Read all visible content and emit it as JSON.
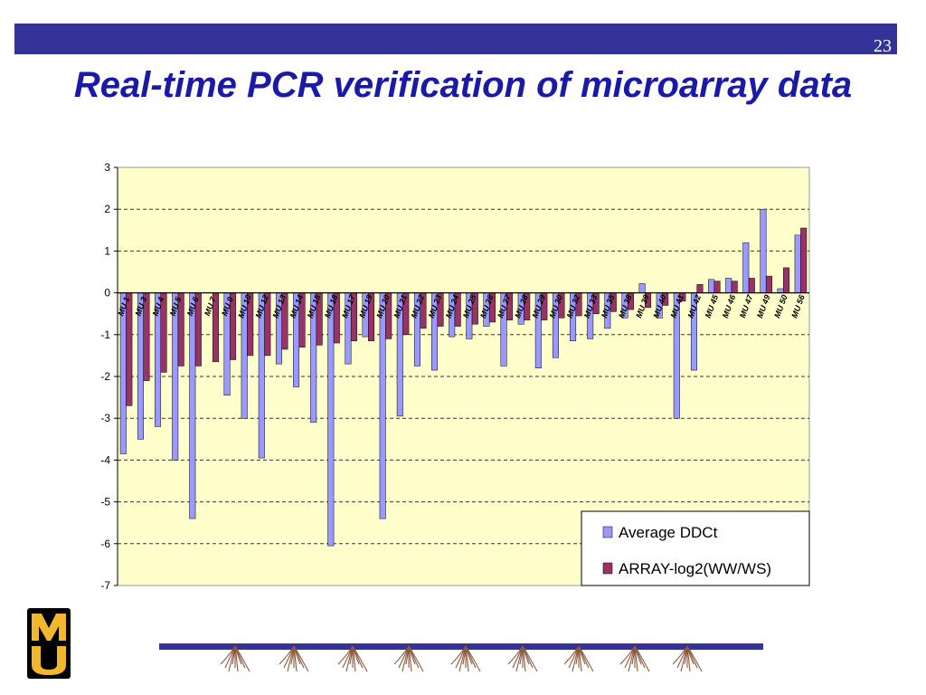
{
  "slide": {
    "page_number": "23",
    "title": "Real-time PCR verification of microarray data"
  },
  "colors": {
    "header_bar": "#333399",
    "title": "#1a1aa6",
    "plot_background": "#ffffcc",
    "series_1": "#9999ff",
    "series_2": "#993366"
  },
  "logo": {
    "letters": "MU",
    "name": "University of Missouri logo"
  },
  "chart_data": {
    "type": "bar",
    "title": "",
    "xlabel": "",
    "ylabel": "",
    "ylim": [
      -7,
      3
    ],
    "yticks": [
      3,
      2,
      1,
      0,
      -1,
      -2,
      -3,
      -4,
      -5,
      -6,
      -7
    ],
    "grid": "horizontal dashed",
    "legend_position": "bottom-right",
    "categories": [
      "MU 1",
      "MU 3",
      "MU 4",
      "MU 5",
      "MU 6",
      "MU 7",
      "MU 9",
      "MU 10",
      "MU 12",
      "MU 13",
      "MU 14",
      "MU 15",
      "MU 16",
      "MU 17",
      "MU 19",
      "MU 20",
      "MU 21",
      "MU 22",
      "MU 23",
      "MU 24",
      "MU 25",
      "MU 26",
      "MU 27",
      "MU 28",
      "MU 29",
      "MU 30",
      "MU 32",
      "MU 33",
      "MU 35",
      "MU 38",
      "MU 39",
      "MU 40",
      "MU 41",
      "MU 42",
      "MU 45",
      "MU 46",
      "MU 47",
      "MU 49",
      "MU 50",
      "MU 56"
    ],
    "series": [
      {
        "name": "Average DDCt",
        "color": "#9999ff",
        "values": [
          -3.85,
          -3.5,
          -3.2,
          -4.0,
          -5.4,
          0,
          -2.45,
          -3.0,
          -3.95,
          -1.7,
          -2.25,
          -3.1,
          -6.05,
          -1.7,
          -1.05,
          -5.4,
          -2.95,
          -1.75,
          -1.85,
          -1.05,
          -1.1,
          -0.8,
          -1.75,
          -0.75,
          -1.8,
          -1.55,
          -1.15,
          -1.1,
          -0.85,
          -0.6,
          0.22,
          -0.6,
          -3.0,
          -1.85,
          0.32,
          0.35,
          1.2,
          2.0,
          0.1,
          1.38
        ]
      },
      {
        "name": "ARRAY-log2(WW/WS)",
        "color": "#993366",
        "values": [
          -2.7,
          -2.1,
          -1.9,
          -1.75,
          -1.75,
          -1.65,
          -1.6,
          -1.5,
          -1.5,
          -1.35,
          -1.3,
          -1.25,
          -1.2,
          -1.15,
          -1.15,
          -1.1,
          -1.0,
          -0.85,
          -0.8,
          -0.8,
          -0.75,
          -0.7,
          -0.65,
          -0.65,
          -0.65,
          -0.6,
          -0.55,
          -0.5,
          -0.45,
          -0.4,
          -0.35,
          -0.3,
          -0.2,
          0.2,
          0.28,
          0.28,
          0.35,
          0.4,
          0.6,
          1.55
        ]
      }
    ]
  }
}
